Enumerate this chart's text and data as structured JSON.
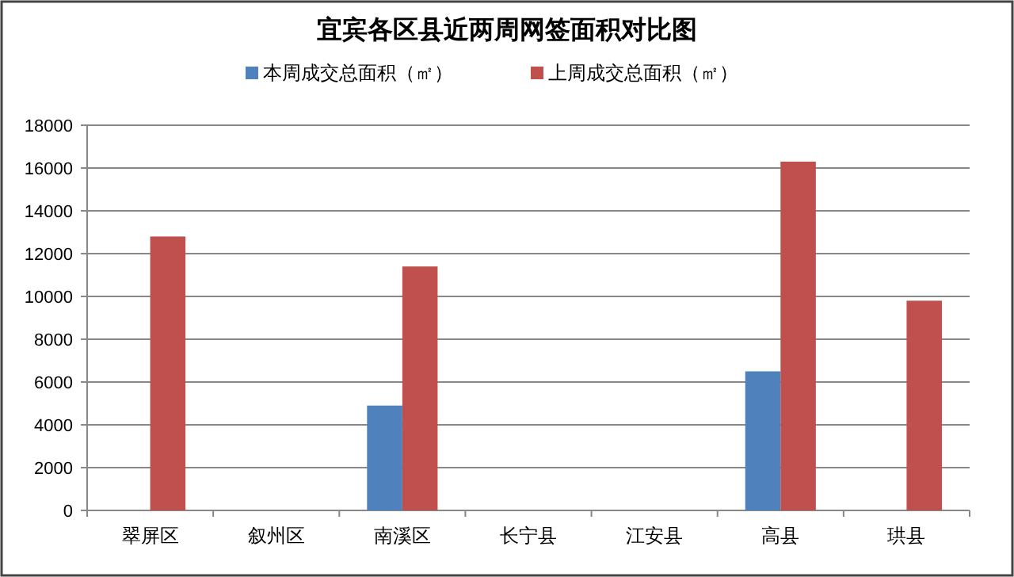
{
  "chart_data": {
    "type": "bar",
    "title": "宜宾各区县近两周网签面积对比图",
    "categories": [
      "翠屏区",
      "叙州区",
      "南溪区",
      "长宁县",
      "江安县",
      "高县",
      "珙县"
    ],
    "series": [
      {
        "name": "本周成交总面积（㎡）",
        "color": "#4f81bd",
        "values": [
          null,
          null,
          4900,
          null,
          null,
          6500,
          null
        ]
      },
      {
        "name": "上周成交总面积（㎡）",
        "color": "#c0504d",
        "values": [
          12800,
          null,
          11400,
          null,
          null,
          16300,
          9800
        ]
      }
    ],
    "ylim": [
      0,
      18000
    ],
    "yticks": [
      0,
      2000,
      4000,
      6000,
      8000,
      10000,
      12000,
      14000,
      16000,
      18000
    ],
    "grid": "y",
    "legend": "top"
  }
}
